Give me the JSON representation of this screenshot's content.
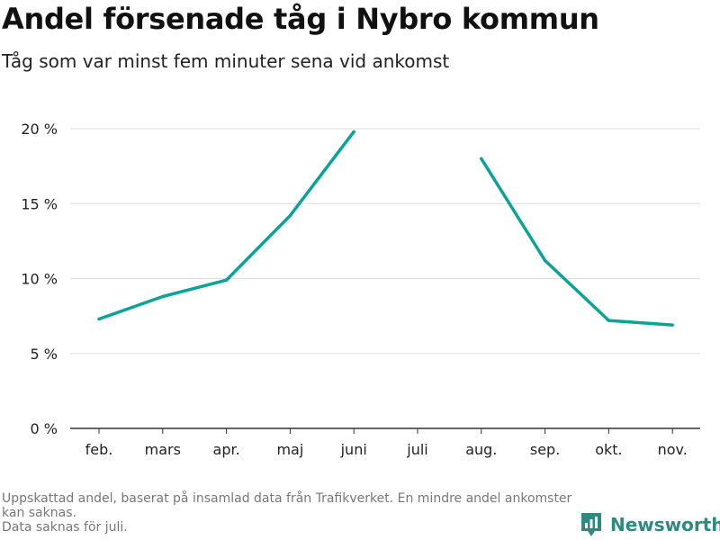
{
  "header": {
    "title": "Andel försenade tåg i Nybro kommun",
    "subtitle": "Tåg som var minst fem minuter sena vid ankomst"
  },
  "footer": {
    "note_line1": "Uppskattad andel, baserat på insamlad data från Trafikverket. En mindre andel ankomster kan saknas.",
    "note_line2": "Data saknas för juli.",
    "brand": "Newsworthy",
    "brand_icon": "bar-chart-logo-icon"
  },
  "colors": {
    "line": "#0aa396",
    "grid": "#dddddd",
    "axis": "#333333",
    "brand": "#2d8a7f"
  },
  "chart_data": {
    "type": "line",
    "title": "Andel försenade tåg i Nybro kommun",
    "subtitle": "Tåg som var minst fem minuter sena vid ankomst",
    "categories": [
      "feb.",
      "mars",
      "apr.",
      "maj",
      "juni",
      "juli",
      "aug.",
      "sep.",
      "okt.",
      "nov."
    ],
    "series": [
      {
        "values": [
          7.3,
          8.8,
          9.9,
          14.2,
          19.8,
          null,
          18.0,
          11.2,
          7.2,
          6.9
        ]
      }
    ],
    "y_ticks": [
      0,
      5,
      10,
      15,
      20
    ],
    "y_tick_labels": [
      "0 %",
      "5 %",
      "10 %",
      "15 %",
      "20 %"
    ],
    "ylim": [
      0,
      20
    ],
    "grid": true,
    "legend": "none"
  }
}
